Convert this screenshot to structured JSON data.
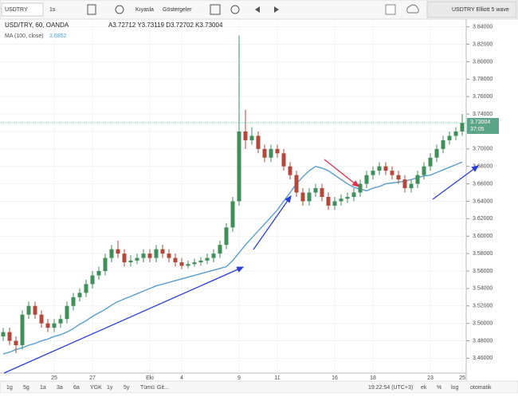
{
  "toolbar": {
    "symbol": "USDTRY",
    "interval": "1s",
    "compare": "Kıyasla",
    "indicators": "Göstergeler",
    "layout": "USDTRY Elliott 5 wave"
  },
  "chart_data": {
    "type": "candlestick",
    "title": "USD/TRY, 60, OANDA",
    "ohlc_legend": "A3.72712 Y3.73119 D3.72702 K3.73004",
    "categories": [
      null,
      null,
      null,
      null,
      null,
      null,
      null,
      null,
      "25",
      null,
      null,
      null,
      null,
      null,
      "27",
      null,
      null,
      null,
      null,
      null,
      null,
      null,
      null,
      "Eki",
      null,
      null,
      null,
      null,
      "4",
      null,
      null,
      null,
      null,
      null,
      null,
      null,
      null,
      "9",
      null,
      null,
      null,
      null,
      null,
      "11",
      null,
      null,
      null,
      null,
      null,
      null,
      null,
      null,
      "16",
      null,
      null,
      null,
      null,
      null,
      "18",
      null,
      null,
      null,
      null,
      null,
      null,
      null,
      null,
      "23",
      null,
      null,
      null,
      null,
      "25"
    ],
    "open": [
      3.485,
      3.49,
      3.48,
      3.475,
      3.51,
      3.52,
      3.51,
      3.5,
      3.495,
      3.5,
      3.505,
      3.52,
      3.53,
      3.535,
      3.545,
      3.555,
      3.56,
      3.575,
      3.585,
      3.58,
      3.57,
      3.572,
      3.575,
      3.58,
      3.575,
      3.585,
      3.58,
      3.575,
      3.57,
      3.566,
      3.568,
      3.57,
      3.572,
      3.575,
      3.58,
      3.59,
      3.61,
      3.64,
      3.72,
      3.71,
      3.715,
      3.7,
      3.69,
      3.7,
      3.695,
      3.68,
      3.67,
      3.65,
      3.64,
      3.65,
      3.655,
      3.645,
      3.635,
      3.64,
      3.643,
      3.645,
      3.65,
      3.66,
      3.67,
      3.675,
      3.68,
      3.675,
      3.67,
      3.665,
      3.655,
      3.66,
      3.67,
      3.68,
      3.69,
      3.7,
      3.71,
      3.715,
      3.72
    ],
    "high": [
      3.495,
      3.495,
      3.485,
      3.515,
      3.525,
      3.525,
      3.515,
      3.505,
      3.505,
      3.51,
      3.525,
      3.535,
      3.54,
      3.55,
      3.56,
      3.565,
      3.58,
      3.59,
      3.595,
      3.585,
      3.578,
      3.58,
      3.585,
      3.585,
      3.59,
      3.59,
      3.585,
      3.58,
      3.575,
      3.572,
      3.574,
      3.576,
      3.58,
      3.585,
      3.595,
      3.615,
      3.645,
      3.83,
      3.745,
      3.725,
      3.72,
      3.705,
      3.705,
      3.705,
      3.7,
      3.685,
      3.675,
      3.655,
      3.655,
      3.66,
      3.66,
      3.65,
      3.645,
      3.648,
      3.65,
      3.655,
      3.665,
      3.675,
      3.68,
      3.685,
      3.685,
      3.68,
      3.675,
      3.67,
      3.665,
      3.675,
      3.685,
      3.695,
      3.705,
      3.715,
      3.72,
      3.725,
      3.74
    ],
    "low": [
      3.48,
      3.475,
      3.466,
      3.47,
      3.505,
      3.505,
      3.495,
      3.49,
      3.49,
      3.495,
      3.5,
      3.515,
      3.525,
      3.53,
      3.54,
      3.55,
      3.555,
      3.57,
      3.575,
      3.565,
      3.565,
      3.568,
      3.57,
      3.57,
      3.57,
      3.575,
      3.57,
      3.565,
      3.562,
      3.563,
      3.565,
      3.566,
      3.568,
      3.57,
      3.575,
      3.585,
      3.605,
      3.635,
      3.7,
      3.705,
      3.695,
      3.685,
      3.685,
      3.69,
      3.675,
      3.665,
      3.645,
      3.635,
      3.635,
      3.645,
      3.64,
      3.63,
      3.63,
      3.635,
      3.638,
      3.64,
      3.645,
      3.655,
      3.665,
      3.67,
      3.67,
      3.665,
      3.66,
      3.65,
      3.65,
      3.655,
      3.665,
      3.675,
      3.685,
      3.695,
      3.705,
      3.71,
      3.715
    ],
    "close": [
      3.49,
      3.48,
      3.475,
      3.51,
      3.52,
      3.51,
      3.5,
      3.495,
      3.5,
      3.505,
      3.52,
      3.53,
      3.535,
      3.545,
      3.555,
      3.56,
      3.575,
      3.585,
      3.58,
      3.57,
      3.572,
      3.575,
      3.58,
      3.575,
      3.585,
      3.58,
      3.575,
      3.57,
      3.566,
      3.568,
      3.57,
      3.572,
      3.575,
      3.58,
      3.59,
      3.61,
      3.64,
      3.72,
      3.71,
      3.715,
      3.7,
      3.69,
      3.7,
      3.695,
      3.68,
      3.67,
      3.65,
      3.64,
      3.65,
      3.655,
      3.645,
      3.635,
      3.64,
      3.643,
      3.645,
      3.65,
      3.66,
      3.67,
      3.675,
      3.68,
      3.675,
      3.67,
      3.665,
      3.655,
      3.66,
      3.67,
      3.68,
      3.69,
      3.7,
      3.71,
      3.715,
      3.72,
      3.73
    ],
    "up_color": "#3f8f5a",
    "down_color": "#b5473a",
    "series": [
      {
        "name": "MA (100, close)",
        "color": "#5a9ec8",
        "last_value": 3.6852,
        "values": [
          3.465,
          3.467,
          3.47,
          3.472,
          3.475,
          3.477,
          3.48,
          3.482,
          3.485,
          3.487,
          3.49,
          3.494,
          3.499,
          3.503,
          3.508,
          3.512,
          3.516,
          3.521,
          3.525,
          3.528,
          3.531,
          3.534,
          3.537,
          3.54,
          3.543,
          3.545,
          3.547,
          3.549,
          3.551,
          3.553,
          3.555,
          3.557,
          3.559,
          3.561,
          3.563,
          3.565,
          3.572,
          3.581,
          3.59,
          3.598,
          3.606,
          3.614,
          3.622,
          3.63,
          3.64,
          3.65,
          3.66,
          3.668,
          3.675,
          3.68,
          3.678,
          3.675,
          3.67,
          3.665,
          3.66,
          3.656,
          3.654,
          3.652,
          3.655,
          3.657,
          3.66,
          3.661,
          3.662,
          3.663,
          3.665,
          3.667,
          3.669,
          3.67,
          3.673,
          3.676,
          3.679,
          3.682,
          3.685
        ]
      }
    ],
    "last_price": 3.73004,
    "countdown": "37:05",
    "ylim": [
      3.443,
      3.847
    ],
    "yticks": [
      {
        "value": 3.46,
        "label": "3.46000"
      },
      {
        "value": 3.48,
        "label": "3.48000"
      },
      {
        "value": 3.5,
        "label": "3.50000"
      },
      {
        "value": 3.52,
        "label": "3.52000"
      },
      {
        "value": 3.54,
        "label": "3.54000"
      },
      {
        "value": 3.56,
        "label": "3.56000"
      },
      {
        "value": 3.58,
        "label": "3.58000"
      },
      {
        "value": 3.6,
        "label": "3.60000"
      },
      {
        "value": 3.62,
        "label": "3.62000"
      },
      {
        "value": 3.64,
        "label": "3.64000"
      },
      {
        "value": 3.66,
        "label": "3.66000"
      },
      {
        "value": 3.68,
        "label": "3.68000"
      },
      {
        "value": 3.7,
        "label": "3.70000"
      },
      {
        "value": 3.72,
        "label": "3.72000"
      },
      {
        "value": 3.74,
        "label": "3.74000"
      },
      {
        "value": 3.76,
        "label": "3.76000"
      },
      {
        "value": 3.78,
        "label": "3.78000"
      },
      {
        "value": 3.8,
        "label": "3.80000"
      },
      {
        "value": 3.82,
        "label": "3.82000"
      },
      {
        "value": 3.84,
        "label": "3.84000"
      }
    ],
    "grid": true
  },
  "bottom_bar": {
    "ranges": [
      "1g",
      "5g",
      "1a",
      "3a",
      "6a",
      "YGK",
      "1y",
      "5y",
      "Tümü"
    ],
    "goto": "Git...",
    "clock": "19:22:54 (UTC+3)",
    "options": [
      "ek",
      "%",
      "log",
      "otomatik"
    ]
  }
}
